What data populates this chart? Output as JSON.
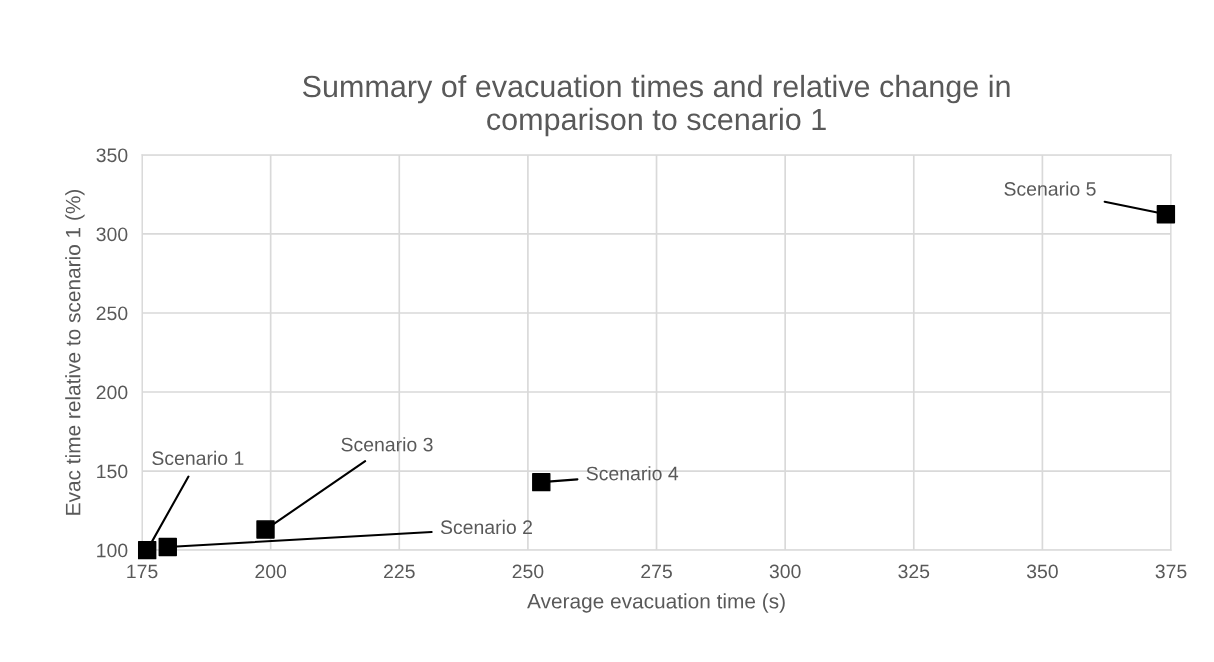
{
  "chart_data": {
    "type": "scatter",
    "title": "Summary of evacuation times and relative change in\ncomparison to scenario 1",
    "xlabel": "Average evacuation time (s)",
    "ylabel": "Evac time relative to scenario 1 (%)",
    "series": [
      {
        "color": "#000000",
        "x": [
          176,
          180,
          199,
          252.6,
          374
        ],
        "values": [
          100,
          102,
          113,
          143,
          312.5
        ]
      }
    ],
    "marker": "square",
    "annotations": [
      {
        "text": "Scenario 1",
        "x": 176,
        "y": 100
      },
      {
        "text": "Scenario 2",
        "x": 180,
        "y": 102
      },
      {
        "text": "Scenario 3",
        "x": 199,
        "y": 113
      },
      {
        "text": "Scenario 4",
        "x": 252.6,
        "y": 143
      },
      {
        "text": "Scenario 5",
        "x": 374,
        "y": 312.5
      }
    ],
    "xlim": [
      175,
      375
    ],
    "xticks": [
      175,
      200,
      225,
      250,
      275,
      300,
      325,
      350,
      375
    ],
    "ylim": [
      100,
      350
    ],
    "yticks": [
      100,
      150,
      200,
      250,
      300,
      350
    ],
    "grid": true
  }
}
